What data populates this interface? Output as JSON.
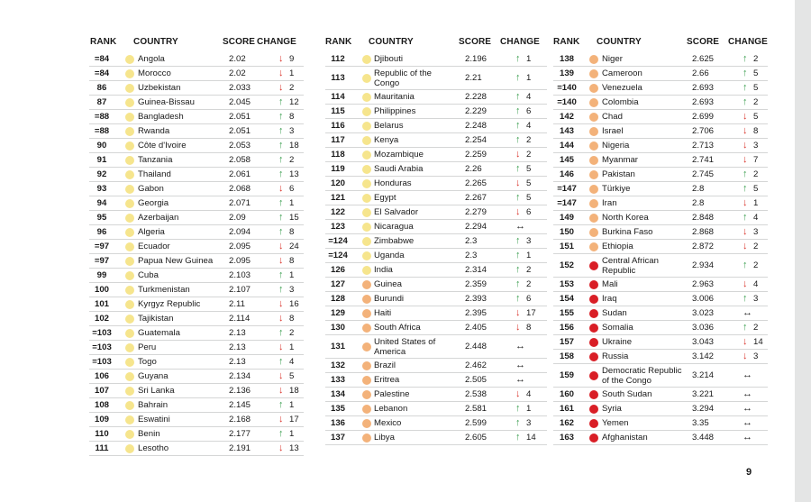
{
  "headers": {
    "rank": "RANK",
    "country": "COUNTRY",
    "score": "SCORE",
    "change": "CHANGE"
  },
  "page_number": "9",
  "colors": {
    "yellow": "#f6e58d",
    "orange": "#f3b27a",
    "red": "#d91e26",
    "up": "#3a9e4f",
    "down": "#d9332b"
  },
  "icons": {
    "up": "arrow-up-icon",
    "down": "arrow-down-icon",
    "same": "no-change-icon"
  },
  "columns": [
    [
      {
        "rank": "=84",
        "dot": "yellow",
        "country": "Angola",
        "score": "2.02",
        "dir": "down",
        "change": "9"
      },
      {
        "rank": "=84",
        "dot": "yellow",
        "country": "Morocco",
        "score": "2.02",
        "dir": "down",
        "change": "1"
      },
      {
        "rank": "86",
        "dot": "yellow",
        "country": "Uzbekistan",
        "score": "2.033",
        "dir": "down",
        "change": "2"
      },
      {
        "rank": "87",
        "dot": "yellow",
        "country": "Guinea-Bissau",
        "score": "2.045",
        "dir": "up",
        "change": "12"
      },
      {
        "rank": "=88",
        "dot": "yellow",
        "country": "Bangladesh",
        "score": "2.051",
        "dir": "up",
        "change": "8"
      },
      {
        "rank": "=88",
        "dot": "yellow",
        "country": "Rwanda",
        "score": "2.051",
        "dir": "up",
        "change": "3"
      },
      {
        "rank": "90",
        "dot": "yellow",
        "country": "Côte d'Ivoire",
        "score": "2.053",
        "dir": "up",
        "change": "18"
      },
      {
        "rank": "91",
        "dot": "yellow",
        "country": "Tanzania",
        "score": "2.058",
        "dir": "up",
        "change": "2"
      },
      {
        "rank": "92",
        "dot": "yellow",
        "country": "Thailand",
        "score": "2.061",
        "dir": "up",
        "change": "13"
      },
      {
        "rank": "93",
        "dot": "yellow",
        "country": "Gabon",
        "score": "2.068",
        "dir": "down",
        "change": "6"
      },
      {
        "rank": "94",
        "dot": "yellow",
        "country": "Georgia",
        "score": "2.071",
        "dir": "up",
        "change": "1"
      },
      {
        "rank": "95",
        "dot": "yellow",
        "country": "Azerbaijan",
        "score": "2.09",
        "dir": "up",
        "change": "15"
      },
      {
        "rank": "96",
        "dot": "yellow",
        "country": "Algeria",
        "score": "2.094",
        "dir": "up",
        "change": "8"
      },
      {
        "rank": "=97",
        "dot": "yellow",
        "country": "Ecuador",
        "score": "2.095",
        "dir": "down",
        "change": "24"
      },
      {
        "rank": "=97",
        "dot": "yellow",
        "country": "Papua New Guinea",
        "score": "2.095",
        "dir": "down",
        "change": "8"
      },
      {
        "rank": "99",
        "dot": "yellow",
        "country": "Cuba",
        "score": "2.103",
        "dir": "up",
        "change": "1"
      },
      {
        "rank": "100",
        "dot": "yellow",
        "country": "Turkmenistan",
        "score": "2.107",
        "dir": "up",
        "change": "3"
      },
      {
        "rank": "101",
        "dot": "yellow",
        "country": "Kyrgyz Republic",
        "score": "2.11",
        "dir": "down",
        "change": "16"
      },
      {
        "rank": "102",
        "dot": "yellow",
        "country": "Tajikistan",
        "score": "2.114",
        "dir": "down",
        "change": "8"
      },
      {
        "rank": "=103",
        "dot": "yellow",
        "country": "Guatemala",
        "score": "2.13",
        "dir": "up",
        "change": "2"
      },
      {
        "rank": "=103",
        "dot": "yellow",
        "country": "Peru",
        "score": "2.13",
        "dir": "down",
        "change": "1"
      },
      {
        "rank": "=103",
        "dot": "yellow",
        "country": "Togo",
        "score": "2.13",
        "dir": "up",
        "change": "4"
      },
      {
        "rank": "106",
        "dot": "yellow",
        "country": "Guyana",
        "score": "2.134",
        "dir": "down",
        "change": "5"
      },
      {
        "rank": "107",
        "dot": "yellow",
        "country": "Sri Lanka",
        "score": "2.136",
        "dir": "down",
        "change": "18"
      },
      {
        "rank": "108",
        "dot": "yellow",
        "country": "Bahrain",
        "score": "2.145",
        "dir": "up",
        "change": "1"
      },
      {
        "rank": "109",
        "dot": "yellow",
        "country": "Eswatini",
        "score": "2.168",
        "dir": "down",
        "change": "17"
      },
      {
        "rank": "110",
        "dot": "yellow",
        "country": "Benin",
        "score": "2.177",
        "dir": "up",
        "change": "1"
      },
      {
        "rank": "111",
        "dot": "yellow",
        "country": "Lesotho",
        "score": "2.191",
        "dir": "down",
        "change": "13"
      }
    ],
    [
      {
        "rank": "112",
        "dot": "yellow",
        "country": "Djibouti",
        "score": "2.196",
        "dir": "up",
        "change": "1"
      },
      {
        "rank": "113",
        "dot": "yellow",
        "country": "Republic of the Congo",
        "score": "2.21",
        "dir": "up",
        "change": "1",
        "lines": [
          "Republic of the",
          "Congo"
        ]
      },
      {
        "rank": "114",
        "dot": "yellow",
        "country": "Mauritania",
        "score": "2.228",
        "dir": "up",
        "change": "4"
      },
      {
        "rank": "115",
        "dot": "yellow",
        "country": "Philippines",
        "score": "2.229",
        "dir": "up",
        "change": "6"
      },
      {
        "rank": "116",
        "dot": "yellow",
        "country": "Belarus",
        "score": "2.248",
        "dir": "up",
        "change": "4"
      },
      {
        "rank": "117",
        "dot": "yellow",
        "country": "Kenya",
        "score": "2.254",
        "dir": "up",
        "change": "2"
      },
      {
        "rank": "118",
        "dot": "yellow",
        "country": "Mozambique",
        "score": "2.259",
        "dir": "down",
        "change": "2"
      },
      {
        "rank": "119",
        "dot": "yellow",
        "country": "Saudi Arabia",
        "score": "2.26",
        "dir": "up",
        "change": "5"
      },
      {
        "rank": "120",
        "dot": "yellow",
        "country": "Honduras",
        "score": "2.265",
        "dir": "down",
        "change": "5"
      },
      {
        "rank": "121",
        "dot": "yellow",
        "country": "Egypt",
        "score": "2.267",
        "dir": "up",
        "change": "5"
      },
      {
        "rank": "122",
        "dot": "yellow",
        "country": "El Salvador",
        "score": "2.279",
        "dir": "down",
        "change": "6"
      },
      {
        "rank": "123",
        "dot": "yellow",
        "country": "Nicaragua",
        "score": "2.294",
        "dir": "same",
        "change": ""
      },
      {
        "rank": "=124",
        "dot": "yellow",
        "country": "Zimbabwe",
        "score": "2.3",
        "dir": "up",
        "change": "3"
      },
      {
        "rank": "=124",
        "dot": "yellow",
        "country": "Uganda",
        "score": "2.3",
        "dir": "up",
        "change": "1"
      },
      {
        "rank": "126",
        "dot": "yellow",
        "country": "India",
        "score": "2.314",
        "dir": "up",
        "change": "2"
      },
      {
        "rank": "127",
        "dot": "orange",
        "country": "Guinea",
        "score": "2.359",
        "dir": "up",
        "change": "2"
      },
      {
        "rank": "128",
        "dot": "orange",
        "country": "Burundi",
        "score": "2.393",
        "dir": "up",
        "change": "6"
      },
      {
        "rank": "129",
        "dot": "orange",
        "country": "Haiti",
        "score": "2.395",
        "dir": "down",
        "change": "17"
      },
      {
        "rank": "130",
        "dot": "orange",
        "country": "South Africa",
        "score": "2.405",
        "dir": "down",
        "change": "8"
      },
      {
        "rank": "131",
        "dot": "orange",
        "country": "United States of America",
        "score": "2.448",
        "dir": "same",
        "change": "",
        "lines": [
          "United States of",
          "America"
        ]
      },
      {
        "rank": "132",
        "dot": "orange",
        "country": "Brazil",
        "score": "2.462",
        "dir": "same",
        "change": ""
      },
      {
        "rank": "133",
        "dot": "orange",
        "country": "Eritrea",
        "score": "2.505",
        "dir": "same",
        "change": ""
      },
      {
        "rank": "134",
        "dot": "orange",
        "country": "Palestine",
        "score": "2.538",
        "dir": "down",
        "change": "4"
      },
      {
        "rank": "135",
        "dot": "orange",
        "country": "Lebanon",
        "score": "2.581",
        "dir": "up",
        "change": "1"
      },
      {
        "rank": "136",
        "dot": "orange",
        "country": "Mexico",
        "score": "2.599",
        "dir": "up",
        "change": "3"
      },
      {
        "rank": "137",
        "dot": "orange",
        "country": "Libya",
        "score": "2.605",
        "dir": "up",
        "change": "14"
      }
    ],
    [
      {
        "rank": "138",
        "dot": "orange",
        "country": "Niger",
        "score": "2.625",
        "dir": "up",
        "change": "2"
      },
      {
        "rank": "139",
        "dot": "orange",
        "country": "Cameroon",
        "score": "2.66",
        "dir": "up",
        "change": "5"
      },
      {
        "rank": "=140",
        "dot": "orange",
        "country": "Venezuela",
        "score": "2.693",
        "dir": "up",
        "change": "5"
      },
      {
        "rank": "=140",
        "dot": "orange",
        "country": "Colombia",
        "score": "2.693",
        "dir": "up",
        "change": "2"
      },
      {
        "rank": "142",
        "dot": "orange",
        "country": "Chad",
        "score": "2.699",
        "dir": "down",
        "change": "5"
      },
      {
        "rank": "143",
        "dot": "orange",
        "country": "Israel",
        "score": "2.706",
        "dir": "down",
        "change": "8"
      },
      {
        "rank": "144",
        "dot": "orange",
        "country": "Nigeria",
        "score": "2.713",
        "dir": "down",
        "change": "3"
      },
      {
        "rank": "145",
        "dot": "orange",
        "country": "Myanmar",
        "score": "2.741",
        "dir": "down",
        "change": "7"
      },
      {
        "rank": "146",
        "dot": "orange",
        "country": "Pakistan",
        "score": "2.745",
        "dir": "up",
        "change": "2"
      },
      {
        "rank": "=147",
        "dot": "orange",
        "country": "Türkiye",
        "score": "2.8",
        "dir": "up",
        "change": "5"
      },
      {
        "rank": "=147",
        "dot": "orange",
        "country": "Iran",
        "score": "2.8",
        "dir": "down",
        "change": "1"
      },
      {
        "rank": "149",
        "dot": "orange",
        "country": "North Korea",
        "score": "2.848",
        "dir": "up",
        "change": "4"
      },
      {
        "rank": "150",
        "dot": "orange",
        "country": "Burkina Faso",
        "score": "2.868",
        "dir": "down",
        "change": "3"
      },
      {
        "rank": "151",
        "dot": "orange",
        "country": "Ethiopia",
        "score": "2.872",
        "dir": "down",
        "change": "2"
      },
      {
        "rank": "152",
        "dot": "red",
        "country": "Central African Republic",
        "score": "2.934",
        "dir": "up",
        "change": "2",
        "lines": [
          "Central African",
          "Republic"
        ]
      },
      {
        "rank": "153",
        "dot": "red",
        "country": "Mali",
        "score": "2.963",
        "dir": "down",
        "change": "4"
      },
      {
        "rank": "154",
        "dot": "red",
        "country": "Iraq",
        "score": "3.006",
        "dir": "up",
        "change": "3"
      },
      {
        "rank": "155",
        "dot": "red",
        "country": "Sudan",
        "score": "3.023",
        "dir": "same",
        "change": ""
      },
      {
        "rank": "156",
        "dot": "red",
        "country": "Somalia",
        "score": "3.036",
        "dir": "up",
        "change": "2"
      },
      {
        "rank": "157",
        "dot": "red",
        "country": "Ukraine",
        "score": "3.043",
        "dir": "down",
        "change": "14"
      },
      {
        "rank": "158",
        "dot": "red",
        "country": "Russia",
        "score": "3.142",
        "dir": "down",
        "change": "3"
      },
      {
        "rank": "159",
        "dot": "red",
        "country": "Democratic Republic of the Congo",
        "score": "3.214",
        "dir": "same",
        "change": "",
        "lines": [
          "Democratic Republic",
          "of the Congo"
        ]
      },
      {
        "rank": "160",
        "dot": "red",
        "country": "South Sudan",
        "score": "3.221",
        "dir": "same",
        "change": ""
      },
      {
        "rank": "161",
        "dot": "red",
        "country": "Syria",
        "score": "3.294",
        "dir": "same",
        "change": ""
      },
      {
        "rank": "162",
        "dot": "red",
        "country": "Yemen",
        "score": "3.35",
        "dir": "same",
        "change": ""
      },
      {
        "rank": "163",
        "dot": "red",
        "country": "Afghanistan",
        "score": "3.448",
        "dir": "same",
        "change": ""
      }
    ]
  ]
}
